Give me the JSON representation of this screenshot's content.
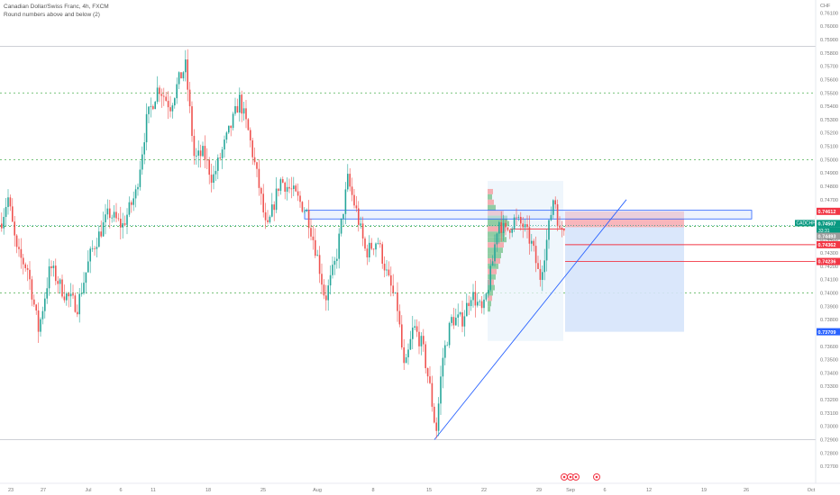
{
  "header": {
    "symbol_title": "Canadian Dollar/Swiss Franc, 4h, FXCM",
    "indicator_label": "Round numbers above and below (2)"
  },
  "price_axis": {
    "currency": "CHF",
    "ticks": [
      "0.76100",
      "0.76000",
      "0.75900",
      "0.75800",
      "0.75700",
      "0.75600",
      "0.75500",
      "0.75400",
      "0.75300",
      "0.75200",
      "0.75100",
      "0.75000",
      "0.74900",
      "0.74800",
      "0.74700",
      "0.74600",
      "0.74500",
      "0.74400",
      "0.74300",
      "0.74200",
      "0.74100",
      "0.74000",
      "0.73900",
      "0.73800",
      "0.73700",
      "0.73600",
      "0.73500",
      "0.73400",
      "0.73300",
      "0.73200",
      "0.73100",
      "0.73000",
      "0.72900",
      "0.72800",
      "0.72700"
    ],
    "ticks_note": "",
    "range": [
      0.7264,
      0.7617
    ]
  },
  "time_axis": {
    "labels": [
      "23",
      "27",
      "Jul",
      "6",
      "11",
      "18",
      "25",
      "Aug",
      "8",
      "15",
      "22",
      "29",
      "Sep",
      "6",
      "12",
      "19",
      "26",
      "Oct"
    ]
  },
  "price_labels": {
    "symbol_tag": "CADCHF",
    "current_price": "0.74507",
    "countdown": "33:31",
    "level_a": "0.74612",
    "level_b": "0.74493",
    "level_c": "0.74362",
    "level_d": "0.74236",
    "target": "0.73709"
  },
  "levels": {
    "round_levels": [
      0.755,
      0.75,
      0.745,
      0.74
    ],
    "stop_zone_top": 0.74612,
    "stop_zone_bottom": 0.74493,
    "entry": 0.74493,
    "red_line_1": 0.74362,
    "red_line_2": 0.74236,
    "target": 0.73709,
    "supply_zone_top": 0.7462,
    "supply_zone_bottom": 0.74555,
    "range_high": 0.7585,
    "range_low": 0.729
  },
  "colors": {
    "up": "#26a69a",
    "down": "#ef5350",
    "round_line": "#4caf50",
    "zone_blue": "#2962ff",
    "stop_fill": "#f7a9b0",
    "target_fill": "#d6e4fb",
    "volume_profile_up": "#86c99a",
    "volume_profile_down": "#f4a5a9",
    "axis_text": "#777777",
    "current_tag": "#089981",
    "red_tag": "#f23645",
    "blue_tag": "#2962ff"
  },
  "event_icons": [
    "economic-event-icon",
    "economic-event-icon",
    "economic-event-icon",
    "economic-event-icon"
  ]
}
